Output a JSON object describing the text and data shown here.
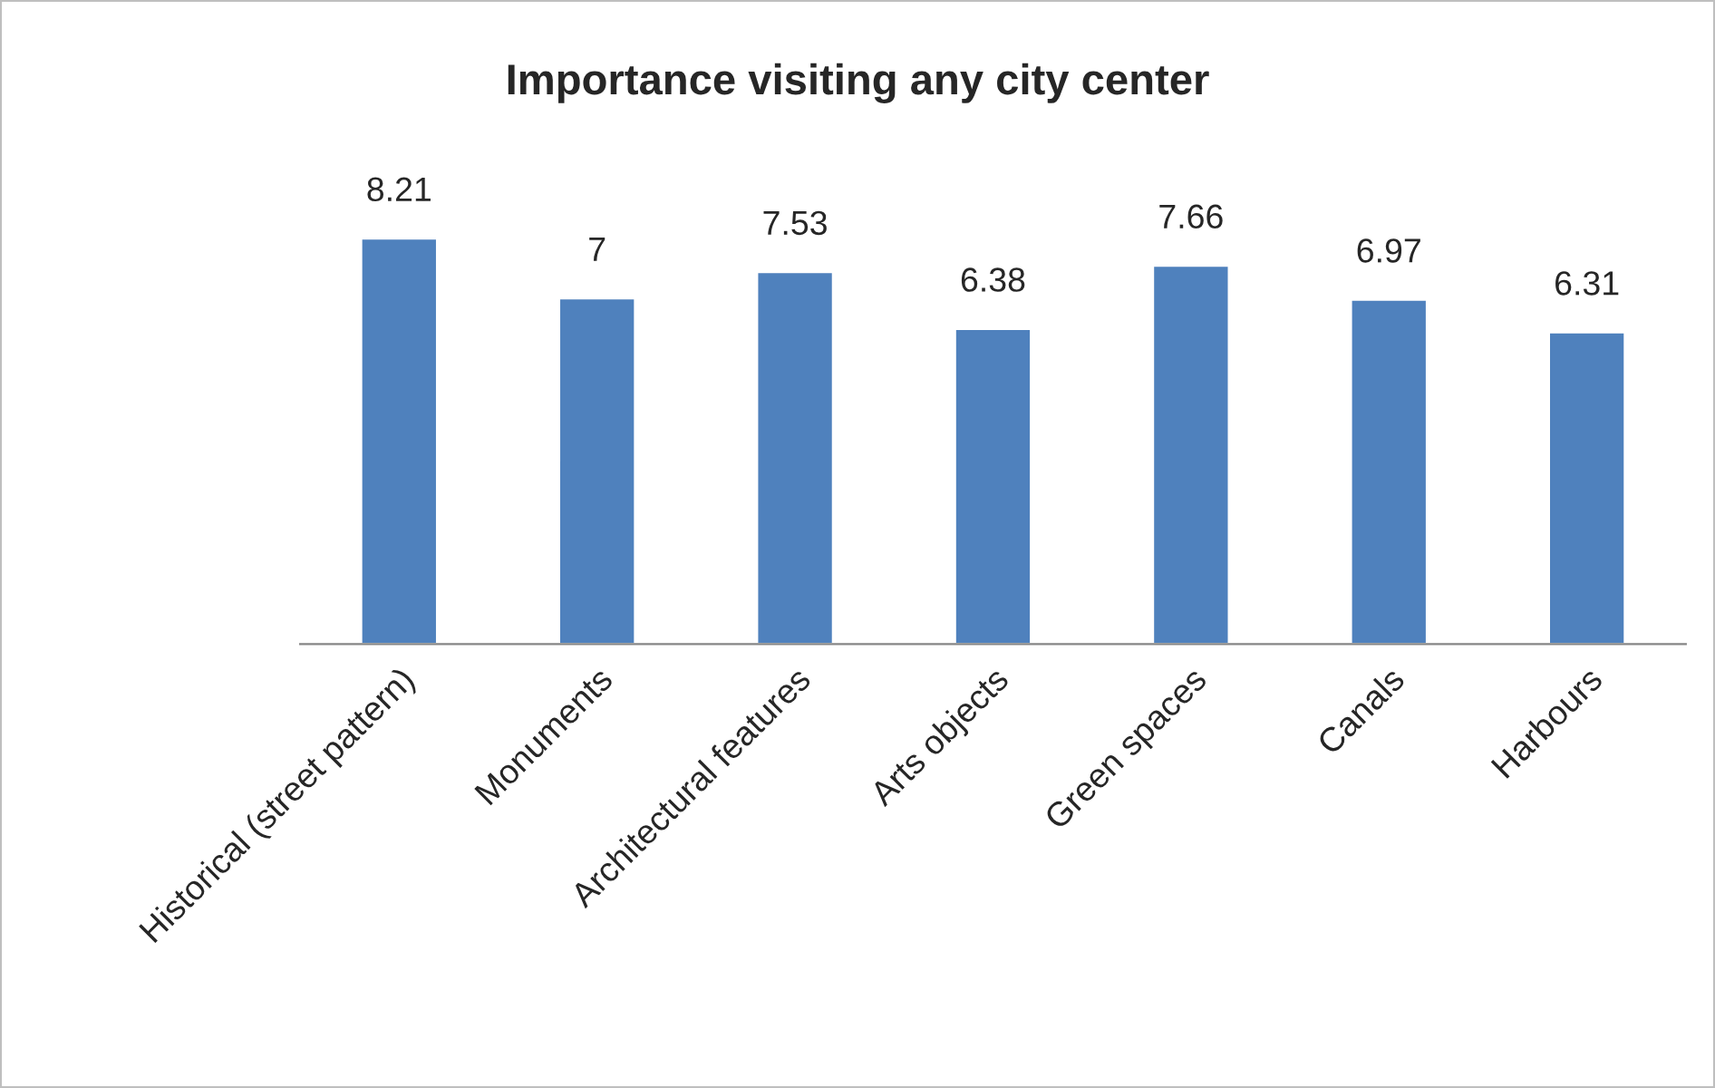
{
  "chart_data": {
    "type": "bar",
    "title": "Importance visiting any city center",
    "categories": [
      "Historical (street pattern)",
      "Monuments",
      "Architectural features",
      "Arts objects",
      "Green spaces",
      "Canals",
      "Harbours"
    ],
    "values": [
      8.21,
      7,
      7.53,
      6.38,
      7.66,
      6.97,
      6.31
    ],
    "color": "#4f81bd",
    "tick_labels": "x",
    "data_labels": true,
    "grid": false,
    "legend": false
  }
}
